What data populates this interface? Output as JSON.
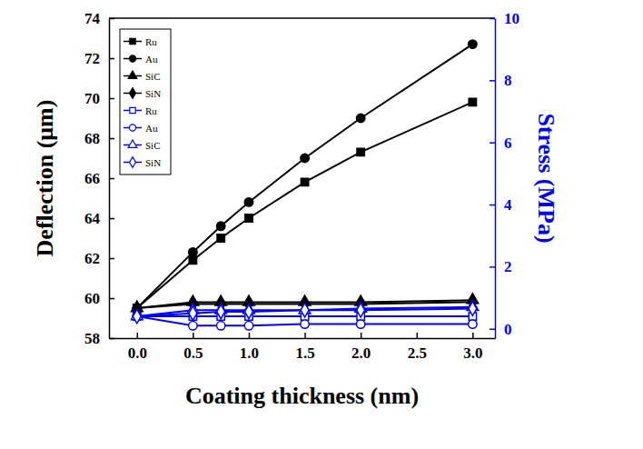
{
  "chart_data": {
    "type": "line",
    "xlabel": "Coating thickness (nm)",
    "ylabel": "Deflection (μm)",
    "y2label": "Stress (MPa)",
    "x": [
      0,
      0.5,
      0.75,
      1.0,
      1.5,
      2.0,
      3.0
    ],
    "xlim": [
      -0.25,
      3.2
    ],
    "xticks": [
      {
        "value": 0,
        "label": "0.0"
      },
      0.5,
      {
        "value": 1,
        "label": "1.0"
      },
      1.5,
      {
        "value": 2,
        "label": "2.0"
      },
      2.5,
      {
        "value": 3,
        "label": "3.0"
      }
    ],
    "ylim": [
      58,
      74
    ],
    "yticks": [
      58,
      60,
      62,
      64,
      66,
      68,
      70,
      72,
      74
    ],
    "y2lim": [
      -0.3,
      10
    ],
    "y2ticks": [
      0,
      2,
      4,
      6,
      8,
      10
    ],
    "legend": "upper left",
    "series": [
      {
        "name": "Ru",
        "color": "#000000",
        "marker": "square",
        "values": [
          59.5,
          61.9,
          63.0,
          64.0,
          65.8,
          67.3,
          69.8
        ]
      },
      {
        "name": "Au",
        "color": "#000000",
        "marker": "circle",
        "values": [
          59.5,
          62.3,
          63.6,
          64.8,
          67.0,
          69.0,
          72.7
        ]
      },
      {
        "name": "SiC",
        "color": "#000000",
        "marker": "triangle",
        "values": [
          59.5,
          59.8,
          59.8,
          59.8,
          59.8,
          59.8,
          59.9
        ]
      },
      {
        "name": "SiN",
        "color": "#000000",
        "marker": "diamond",
        "values": [
          59.5,
          59.7,
          59.7,
          59.7,
          59.7,
          59.7,
          59.8
        ]
      },
      {
        "name": "Ru",
        "color": "#0000ff",
        "marker": "square-open",
        "axis": "y2",
        "values": [
          0.4,
          0.4,
          0.4,
          0.4,
          0.4,
          0.4,
          0.4
        ]
      },
      {
        "name": "Au",
        "color": "#0000ff",
        "marker": "circle-open",
        "axis": "y2",
        "values": [
          0.4,
          0.1,
          0.1,
          0.1,
          0.15,
          0.15,
          0.15
        ]
      },
      {
        "name": "SiC",
        "color": "#0000ff",
        "marker": "triangle-open",
        "axis": "y2",
        "values": [
          0.4,
          0.6,
          0.6,
          0.6,
          0.6,
          0.65,
          0.7
        ]
      },
      {
        "name": "SiN",
        "color": "#0000ff",
        "marker": "diamond-open",
        "axis": "y2",
        "values": [
          0.4,
          0.5,
          0.55,
          0.55,
          0.6,
          0.6,
          0.65
        ]
      }
    ]
  }
}
